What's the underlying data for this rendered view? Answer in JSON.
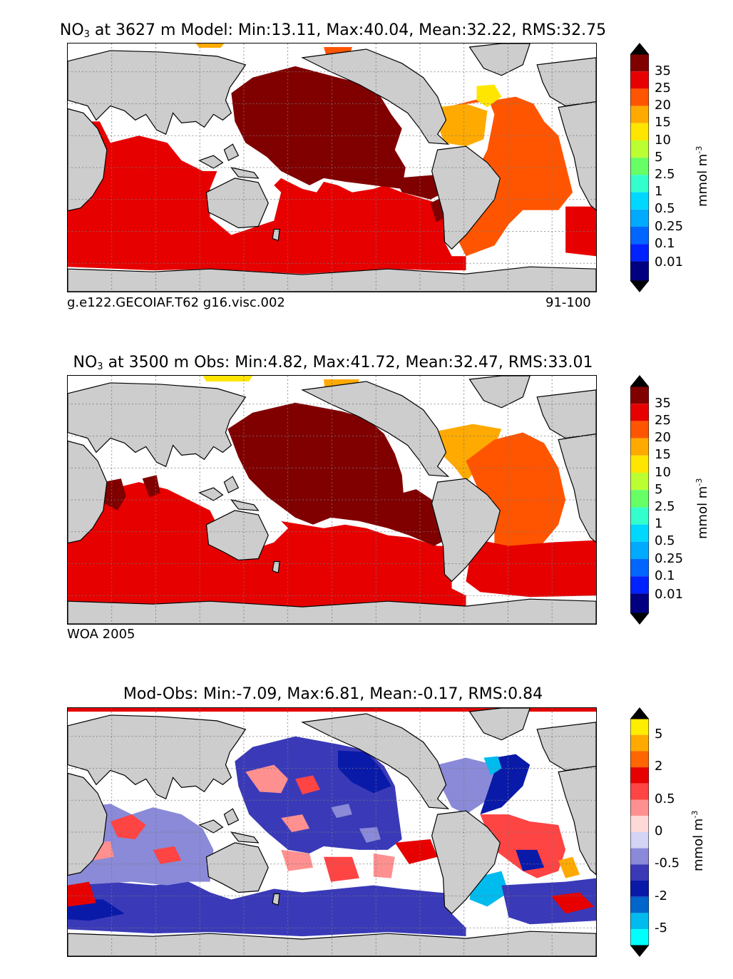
{
  "panels": [
    {
      "title_pre": "NO",
      "title_sub": "3",
      "title_post": " at 3627 m Model: Min:13.11, Max:40.04, Mean:32.22, RMS:32.75",
      "caption_left": "g.e122.GECOIAF.T62 g16.visc.002",
      "caption_right": "91-100"
    },
    {
      "title_pre": "NO",
      "title_sub": "3",
      "title_post": " at 3500 m Obs: Min:4.82, Max:41.72, Mean:32.47, RMS:33.01",
      "caption_left": "WOA 2005",
      "caption_right": ""
    },
    {
      "title_pre": "Mod-Obs: Min:-7.09, Max:6.81, Mean:-0.17, RMS:0.84",
      "title_sub": "",
      "title_post": "",
      "caption_left": "",
      "caption_right": ""
    }
  ],
  "colorbar_unit": {
    "base": "mmol m",
    "sup": "-3"
  },
  "chart_data": [
    {
      "type": "heatmap",
      "title": "NO3 at 3627 m Model: Min:13.11, Max:40.04, Mean:32.22, RMS:32.75",
      "variable": "NO3",
      "depth_m": 3627,
      "source": "Model",
      "stats": {
        "min": 13.11,
        "max": 40.04,
        "mean": 32.22,
        "rms": 32.75
      },
      "colorbar": {
        "label": "mmol m^-3",
        "ticks": [
          "35",
          "25",
          "20",
          "15",
          "10",
          "5",
          "2.5",
          "1",
          "0.5",
          "0.25",
          "0.1",
          "0.01"
        ],
        "colors": [
          "#000080",
          "#0000cd",
          "#0022ff",
          "#0066ff",
          "#00aaff",
          "#00d8ff",
          "#33ffcc",
          "#66ff66",
          "#bbff33",
          "#ffe600",
          "#ffaa00",
          "#ff5500",
          "#e60000",
          "#800000"
        ],
        "extend": "both"
      },
      "caption_left": "g.e122.GECOIAF.T62 g16.visc.002",
      "caption_right": "91-100"
    },
    {
      "type": "heatmap",
      "title": "NO3 at 3500 m Obs: Min:4.82, Max:41.72, Mean:32.47, RMS:33.01",
      "variable": "NO3",
      "depth_m": 3500,
      "source": "Obs",
      "stats": {
        "min": 4.82,
        "max": 41.72,
        "mean": 32.47,
        "rms": 33.01
      },
      "colorbar": {
        "label": "mmol m^-3",
        "ticks": [
          "35",
          "25",
          "20",
          "15",
          "10",
          "5",
          "2.5",
          "1",
          "0.5",
          "0.25",
          "0.1",
          "0.01"
        ],
        "colors": [
          "#000080",
          "#0000cd",
          "#0022ff",
          "#0066ff",
          "#00aaff",
          "#00d8ff",
          "#33ffcc",
          "#66ff66",
          "#bbff33",
          "#ffe600",
          "#ffaa00",
          "#ff5500",
          "#e60000",
          "#800000"
        ],
        "extend": "both"
      },
      "caption_left": "WOA 2005"
    },
    {
      "type": "heatmap",
      "title": "Mod-Obs: Min:-7.09, Max:6.81, Mean:-0.17, RMS:0.84",
      "stats": {
        "min": -7.09,
        "max": 6.81,
        "mean": -0.17,
        "rms": 0.84
      },
      "colorbar": {
        "label": "mmol m^-3",
        "ticks": [
          "5",
          "2",
          "0.5",
          "0",
          "-0.5",
          "-2",
          "-5"
        ],
        "colors": [
          "#00ffff",
          "#00bbee",
          "#0066cc",
          "#0a1aa8",
          "#3a3ab8",
          "#8a8ad8",
          "#d4d4f4",
          "#ffd8d8",
          "#ff9090",
          "#ff4444",
          "#e60000",
          "#ff6600",
          "#ffaa00",
          "#ffee00"
        ],
        "extend": "both"
      }
    }
  ]
}
